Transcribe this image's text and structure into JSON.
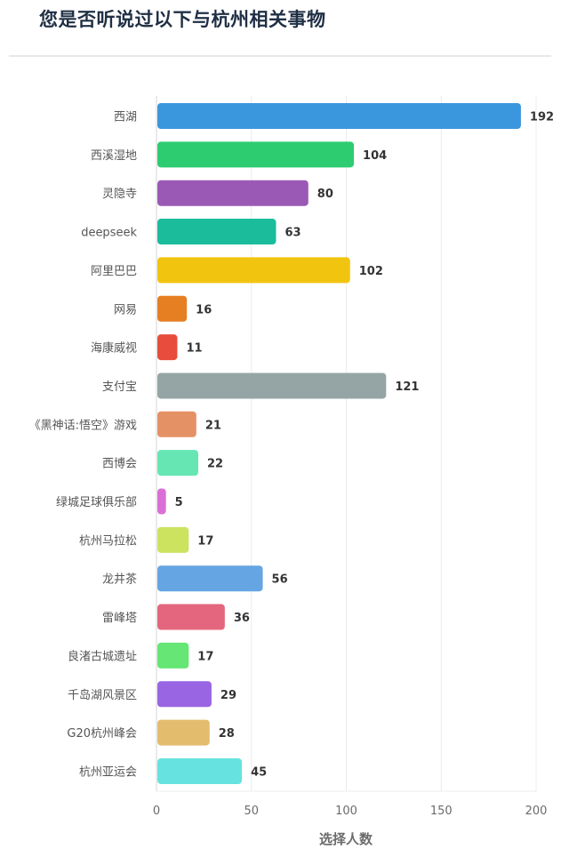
{
  "title": "您是否听说过以下与杭州相关事物",
  "chart_data": {
    "type": "bar",
    "orientation": "horizontal",
    "title": "您是否听说过以下与杭州相关事物",
    "xlabel": "选择人数",
    "ylabel": "",
    "xlim": [
      0,
      200
    ],
    "xticks": [
      0,
      50,
      100,
      150,
      200
    ],
    "grid": true,
    "categories": [
      "西湖",
      "西溪湿地",
      "灵隐寺",
      "deepseek",
      "阿里巴巴",
      "网易",
      "海康威视",
      "支付宝",
      "《黑神话:悟空》游戏",
      "西博会",
      "绿城足球俱乐部",
      "杭州马拉松",
      "龙井茶",
      "雷峰塔",
      "良渚古城遗址",
      "千岛湖风景区",
      "G20杭州峰会",
      "杭州亚运会"
    ],
    "values": [
      192,
      104,
      80,
      63,
      102,
      16,
      11,
      121,
      21,
      22,
      5,
      17,
      56,
      36,
      17,
      29,
      28,
      45
    ],
    "colors": [
      "#3b97dd",
      "#2ecc71",
      "#9b59b6",
      "#1abc9c",
      "#f1c40f",
      "#e67e22",
      "#e74c3c",
      "#95a5a6",
      "#e59166",
      "#66e6b3",
      "#da70d6",
      "#cce35f",
      "#65a5e3",
      "#e4667e",
      "#66e675",
      "#9965e3",
      "#e3bc6e",
      "#66e3e0"
    ]
  }
}
